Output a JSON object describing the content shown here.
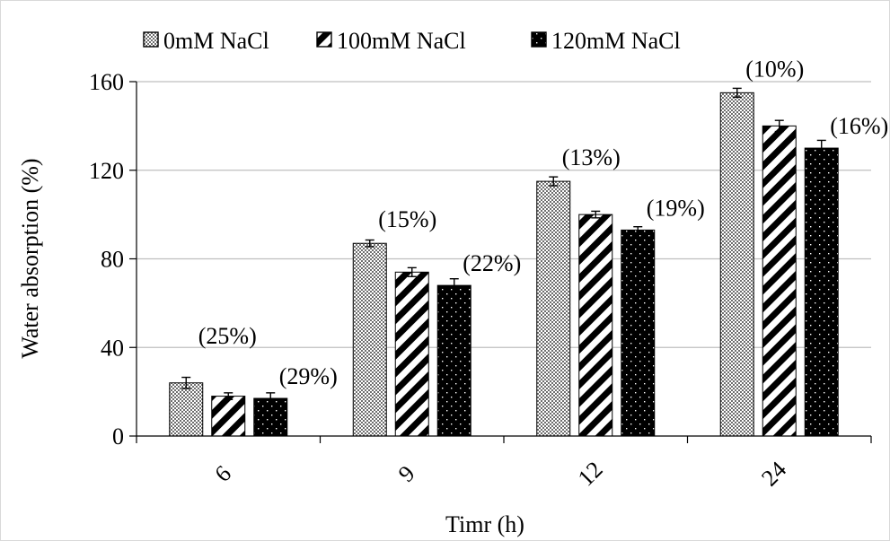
{
  "chart_data": {
    "type": "bar",
    "title": "",
    "xlabel": "Timr (h)",
    "ylabel": "Water absorption (%)",
    "ylim": [
      0,
      160
    ],
    "yticks": [
      0,
      40,
      80,
      120,
      160
    ],
    "grid": true,
    "legend_position": "top",
    "categories": [
      "6",
      "9",
      "12",
      "24"
    ],
    "series": [
      {
        "name": "0mM NaCl",
        "pattern": "checker",
        "values": [
          24,
          87,
          115,
          155
        ],
        "errors": [
          2.5,
          1.5,
          2.0,
          2.0
        ],
        "labels": [
          "(25%)",
          "(15%)",
          "(13%)",
          "(10%)"
        ]
      },
      {
        "name": "100mM NaCl",
        "pattern": "diagonal",
        "values": [
          18,
          74,
          100,
          140
        ],
        "errors": [
          1.5,
          2.0,
          1.5,
          2.5
        ],
        "labels": [
          "",
          "",
          "",
          ""
        ]
      },
      {
        "name": "120mM NaCl",
        "pattern": "dots",
        "values": [
          17,
          68,
          93,
          130
        ],
        "errors": [
          2.5,
          3.0,
          1.5,
          3.5
        ],
        "labels": [
          "(29%)",
          "(22%)",
          "(19%)",
          "(16%)"
        ]
      }
    ]
  }
}
